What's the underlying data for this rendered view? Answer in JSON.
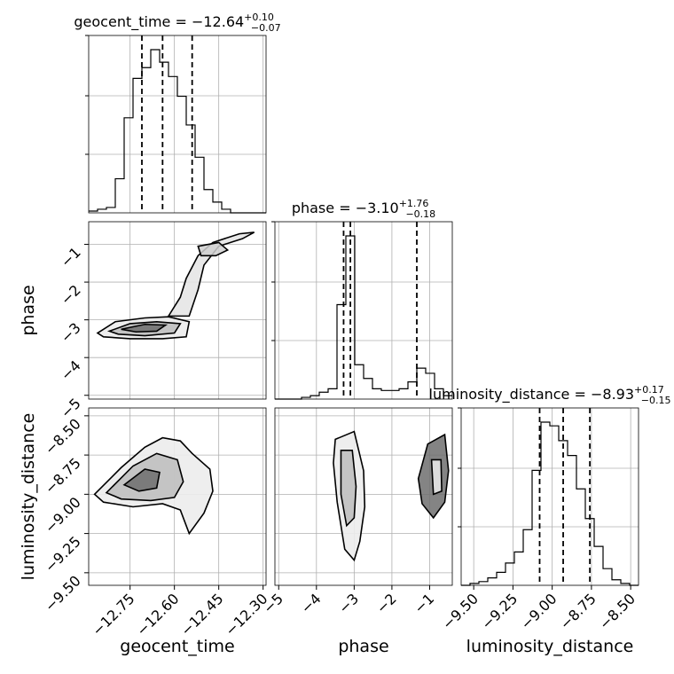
{
  "chart_data": {
    "type": "corner",
    "parameters": [
      "geocent_time",
      "phase",
      "luminosity_distance"
    ],
    "axis_labels": {
      "x": [
        "geocent_time",
        "phase",
        "luminosity_distance"
      ],
      "y": [
        "phase",
        "luminosity_distance"
      ]
    },
    "titles": [
      {
        "param": "geocent_time",
        "prefix": "geocent_time = −12.64",
        "plus": "+0.10",
        "minus": "−0.07"
      },
      {
        "param": "phase",
        "prefix": "phase = −3.10",
        "plus": "+1.76",
        "minus": "−0.18"
      },
      {
        "param": "luminosity_distance",
        "prefix": "luminosity_distance = −8.93",
        "plus": "+0.17",
        "minus": "−0.15"
      }
    ],
    "ranges": {
      "geocent_time": [
        -12.89,
        -12.29
      ],
      "phase": [
        -5.1,
        -0.4
      ],
      "luminosity_distance": [
        -9.58,
        -8.45
      ]
    },
    "ticks": {
      "geocent_time": {
        "values": [
          -12.75,
          -12.6,
          -12.45,
          -12.3
        ],
        "labels": [
          "−12.75",
          "−12.60",
          "−12.45",
          "−12.30"
        ]
      },
      "phase": {
        "values": [
          -5,
          -4,
          -3,
          -2,
          -1
        ],
        "labels": [
          "−5",
          "−4",
          "−3",
          "−2",
          "−1"
        ]
      },
      "luminosity_distance": {
        "values": [
          -9.5,
          -9.25,
          -9.0,
          -8.75,
          -8.5
        ],
        "labels": [
          "−9.50",
          "−9.25",
          "−9.00",
          "−8.75",
          "−8.50"
        ]
      }
    },
    "quantiles": {
      "geocent_time": [
        -12.71,
        -12.64,
        -12.54
      ],
      "phase": [
        -3.28,
        -3.1,
        -1.34
      ],
      "luminosity_distance": [
        -9.08,
        -8.93,
        -8.76
      ]
    },
    "histograms": {
      "geocent_time": {
        "edges": [
          -12.89,
          -12.86,
          -12.83,
          -12.8,
          -12.77,
          -12.74,
          -12.71,
          -12.68,
          -12.65,
          -12.62,
          -12.59,
          -12.56,
          -12.53,
          -12.5,
          -12.47,
          -12.44,
          -12.41,
          -12.38,
          -12.35,
          -12.32,
          -12.29
        ],
        "counts": [
          0.01,
          0.02,
          0.03,
          0.19,
          0.53,
          0.75,
          0.81,
          0.91,
          0.84,
          0.76,
          0.65,
          0.49,
          0.31,
          0.13,
          0.06,
          0.02,
          0.0,
          0.0,
          0.0,
          0.0
        ]
      },
      "phase": {
        "edges": [
          -5.1,
          -4.865,
          -4.63,
          -4.395,
          -4.16,
          -3.925,
          -3.69,
          -3.455,
          -3.22,
          -2.985,
          -2.75,
          -2.515,
          -2.28,
          -2.045,
          -1.81,
          -1.575,
          -1.34,
          -1.105,
          -0.87,
          -0.635,
          -0.4
        ],
        "counts": [
          0.0,
          0.0,
          0.0,
          0.01,
          0.02,
          0.04,
          0.06,
          0.55,
          0.95,
          0.2,
          0.12,
          0.06,
          0.05,
          0.05,
          0.06,
          0.1,
          0.18,
          0.15,
          0.06,
          0.02
        ]
      },
      "luminosity_distance": {
        "edges": [
          -9.58,
          -9.5235,
          -9.467,
          -9.4105,
          -9.354,
          -9.2975,
          -9.241,
          -9.1845,
          -9.128,
          -9.0715,
          -9.015,
          -8.9585,
          -8.902,
          -8.8455,
          -8.789,
          -8.7325,
          -8.676,
          -8.6195,
          -8.563,
          -8.5065,
          -8.45
        ],
        "counts": [
          0.0,
          0.01,
          0.02,
          0.04,
          0.07,
          0.12,
          0.18,
          0.3,
          0.62,
          0.88,
          0.86,
          0.78,
          0.7,
          0.52,
          0.36,
          0.21,
          0.09,
          0.03,
          0.01,
          0.0
        ]
      }
    },
    "contours_2d": [
      {
        "x_param": "geocent_time",
        "y_param": "phase",
        "levels": [
          [
            [
              -12.86,
              -3.35
            ],
            [
              -12.8,
              -3.05
            ],
            [
              -12.7,
              -2.95
            ],
            [
              -12.62,
              -2.92
            ],
            [
              -12.55,
              -3.05
            ],
            [
              -12.56,
              -3.45
            ],
            [
              -12.64,
              -3.5
            ],
            [
              -12.75,
              -3.5
            ],
            [
              -12.84,
              -3.45
            ]
          ],
          [
            [
              -12.82,
              -3.3
            ],
            [
              -12.75,
              -3.1
            ],
            [
              -12.66,
              -3.05
            ],
            [
              -12.58,
              -3.1
            ],
            [
              -12.6,
              -3.35
            ],
            [
              -12.7,
              -3.42
            ],
            [
              -12.79,
              -3.38
            ]
          ],
          [
            [
              -12.78,
              -3.25
            ],
            [
              -12.7,
              -3.12
            ],
            [
              -12.63,
              -3.14
            ],
            [
              -12.66,
              -3.3
            ],
            [
              -12.73,
              -3.32
            ]
          ],
          [
            [
              -12.62,
              -2.9
            ],
            [
              -12.58,
              -2.4
            ],
            [
              -12.56,
              -1.9
            ],
            [
              -12.52,
              -1.3
            ],
            [
              -12.47,
              -0.95
            ],
            [
              -12.38,
              -0.72
            ],
            [
              -12.33,
              -0.68
            ],
            [
              -12.37,
              -0.85
            ],
            [
              -12.45,
              -1.05
            ],
            [
              -12.5,
              -1.55
            ],
            [
              -12.52,
              -2.2
            ],
            [
              -12.55,
              -2.9
            ]
          ],
          [
            [
              -12.52,
              -1.05
            ],
            [
              -12.45,
              -0.95
            ],
            [
              -12.42,
              -1.15
            ],
            [
              -12.46,
              -1.3
            ],
            [
              -12.51,
              -1.3
            ]
          ]
        ]
      },
      {
        "x_param": "geocent_time",
        "y_param": "luminosity_distance",
        "levels": [
          [
            [
              -12.87,
              -9.0
            ],
            [
              -12.78,
              -8.83
            ],
            [
              -12.7,
              -8.7
            ],
            [
              -12.64,
              -8.64
            ],
            [
              -12.58,
              -8.66
            ],
            [
              -12.54,
              -8.74
            ],
            [
              -12.48,
              -8.84
            ],
            [
              -12.47,
              -8.98
            ],
            [
              -12.5,
              -9.12
            ],
            [
              -12.55,
              -9.25
            ],
            [
              -12.58,
              -9.1
            ],
            [
              -12.64,
              -9.06
            ],
            [
              -12.74,
              -9.08
            ],
            [
              -12.84,
              -9.05
            ]
          ],
          [
            [
              -12.83,
              -8.99
            ],
            [
              -12.74,
              -8.82
            ],
            [
              -12.66,
              -8.74
            ],
            [
              -12.59,
              -8.78
            ],
            [
              -12.57,
              -8.92
            ],
            [
              -12.6,
              -9.02
            ],
            [
              -12.68,
              -9.04
            ],
            [
              -12.78,
              -9.03
            ]
          ],
          [
            [
              -12.77,
              -8.94
            ],
            [
              -12.7,
              -8.84
            ],
            [
              -12.65,
              -8.86
            ],
            [
              -12.66,
              -8.96
            ],
            [
              -12.72,
              -8.98
            ]
          ]
        ]
      },
      {
        "x_param": "phase",
        "y_param": "luminosity_distance",
        "levels": [
          [
            [
              -3.5,
              -8.65
            ],
            [
              -3.0,
              -8.6
            ],
            [
              -2.75,
              -8.85
            ],
            [
              -2.72,
              -9.08
            ],
            [
              -2.85,
              -9.3
            ],
            [
              -3.0,
              -9.42
            ],
            [
              -3.25,
              -9.35
            ],
            [
              -3.45,
              -9.05
            ],
            [
              -3.55,
              -8.8
            ]
          ],
          [
            [
              -3.35,
              -8.72
            ],
            [
              -3.05,
              -8.72
            ],
            [
              -2.95,
              -8.95
            ],
            [
              -3.0,
              -9.15
            ],
            [
              -3.2,
              -9.2
            ],
            [
              -3.35,
              -9.0
            ]
          ],
          [
            [
              -1.05,
              -8.68
            ],
            [
              -0.6,
              -8.62
            ],
            [
              -0.5,
              -8.85
            ],
            [
              -0.6,
              -9.05
            ],
            [
              -0.9,
              -9.15
            ],
            [
              -1.2,
              -9.06
            ],
            [
              -1.3,
              -8.9
            ]
          ],
          [
            [
              -0.95,
              -8.78
            ],
            [
              -0.7,
              -8.78
            ],
            [
              -0.68,
              -8.98
            ],
            [
              -0.9,
              -9.0
            ]
          ]
        ]
      }
    ],
    "grid": true
  }
}
